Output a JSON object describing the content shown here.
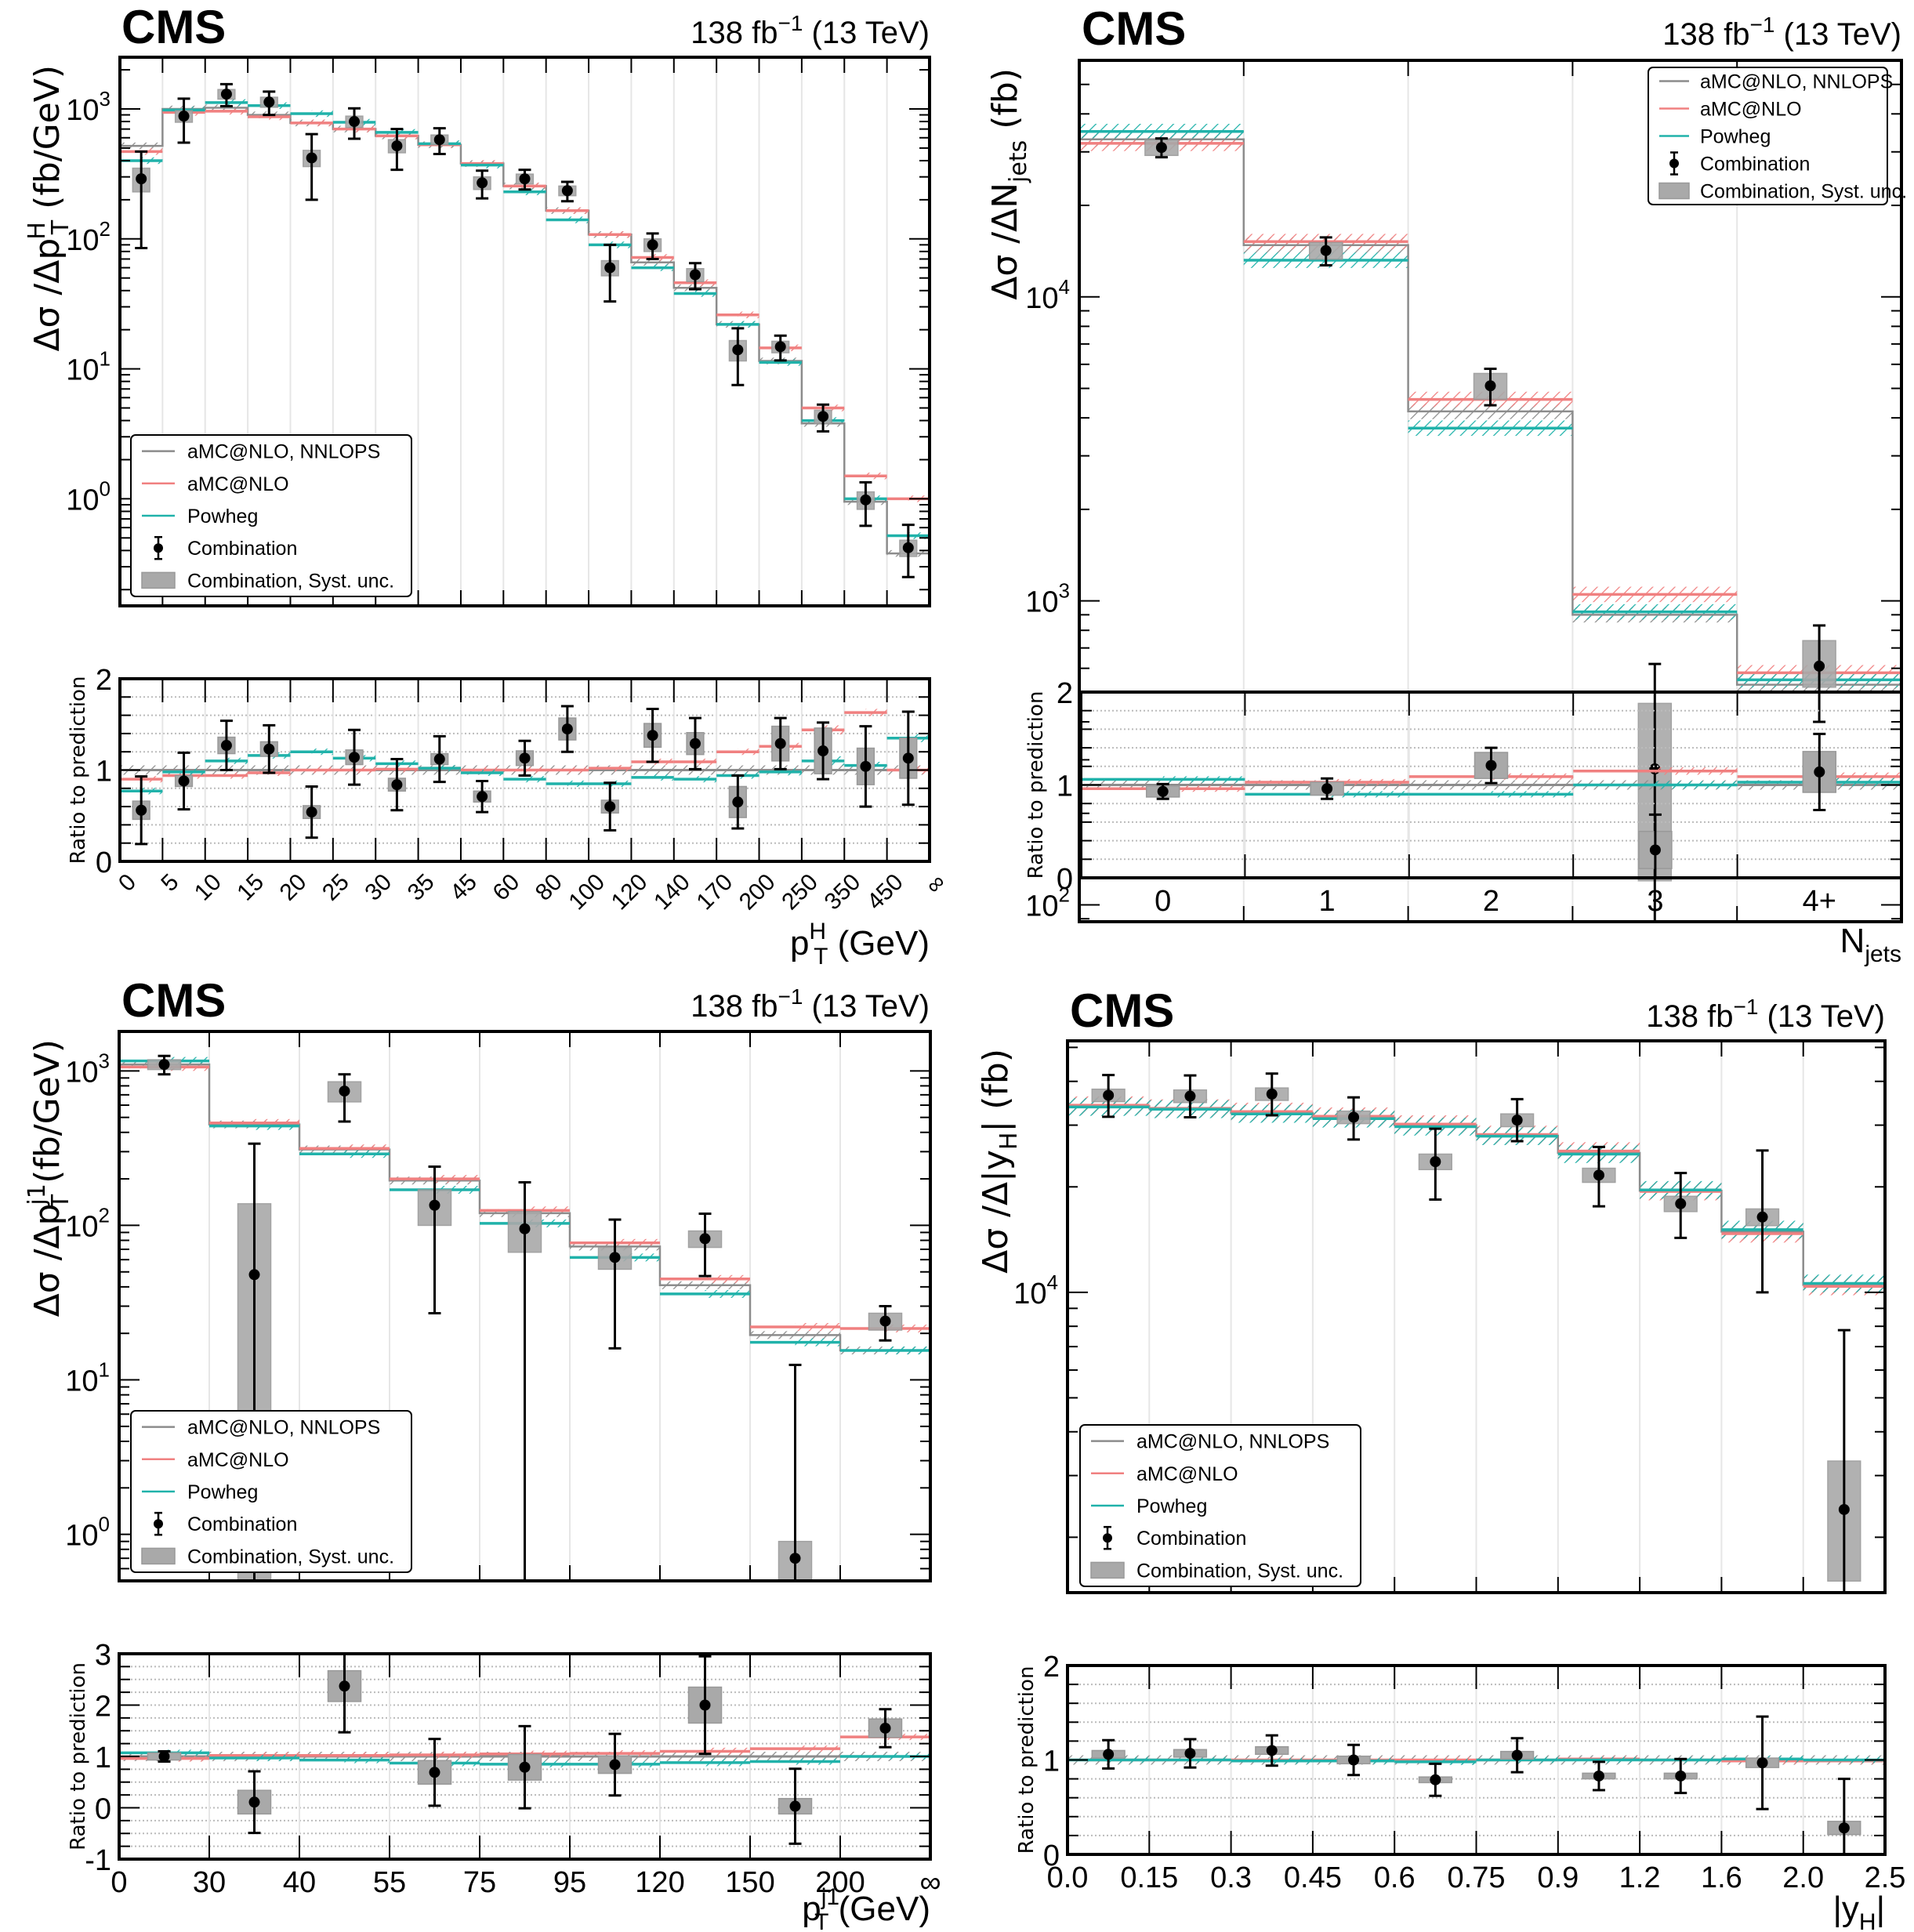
{
  "header": {
    "experiment": "CMS",
    "lumi_label": "138 fb",
    "lumi_sup": "−1",
    "energy_label": "(13 TeV)"
  },
  "legend": {
    "items": [
      {
        "key": "nnlops",
        "label": "aMC@NLO, NNLOPS"
      },
      {
        "key": "amcnlo",
        "label": "aMC@NLO"
      },
      {
        "key": "powheg",
        "label": "Powheg"
      },
      {
        "key": "comb",
        "label": "Combination"
      },
      {
        "key": "syst",
        "label": "Combination, Syst. unc."
      }
    ]
  },
  "colors": {
    "nnlops": "#8c8c8c",
    "amcnlo": "#f08080",
    "powheg": "#20b2aa",
    "data": "#000000",
    "syst": "#a9a9a9",
    "grid": "#e6e6e6"
  },
  "chart_data": [
    {
      "id": "pth",
      "type": "line",
      "title": "",
      "ylabel": "Δσ /Δp_T^H (fb/GeV)",
      "ylabel_parts": {
        "main": "Δσ /Δp",
        "sub": "T",
        "sup": "H",
        "unit": " (fb/GeV)"
      },
      "xlabel_parts": {
        "main": "p",
        "sub": "T",
        "sup": "H",
        "unit": " (GeV)"
      },
      "ratio_ylabel": "Ratio to prediction",
      "yscale": "log",
      "ylim": [
        0.15,
        2500
      ],
      "ytick_labels": [
        {
          "v": 1000,
          "b": "10",
          "e": "3"
        },
        {
          "v": 100,
          "b": "10",
          "e": "2"
        },
        {
          "v": 10,
          "b": "10",
          "e": "1"
        },
        {
          "v": 1,
          "b": "10",
          "e": "0"
        }
      ],
      "ratio_ylim": [
        0,
        2
      ],
      "ratio_yticks": [
        0,
        1,
        2
      ],
      "categories": [
        "0",
        "5",
        "10",
        "15",
        "20",
        "25",
        "30",
        "35",
        "45",
        "60",
        "80",
        "100",
        "120",
        "140",
        "170",
        "200",
        "250",
        "350",
        "450",
        "∞"
      ],
      "x_rotated": true,
      "legend_position": "bottom-left",
      "series": [
        {
          "name": "aMC@NLO, NNLOPS",
          "values": [
            520,
            1000,
            1020,
            900,
            780,
            700,
            620,
            530,
            380,
            255,
            165,
            108,
            66,
            42,
            22,
            11.5,
            3.8,
            0.95,
            0.38
          ]
        },
        {
          "name": "aMC@NLO",
          "values": [
            470,
            940,
            960,
            870,
            780,
            700,
            620,
            530,
            380,
            255,
            165,
            108,
            72,
            46,
            26,
            14.5,
            5.0,
            1.5,
            1.0
          ]
        },
        {
          "name": "Powheg",
          "values": [
            400,
            980,
            1120,
            1060,
            920,
            790,
            660,
            540,
            370,
            230,
            140,
            90,
            60,
            38,
            22,
            11.2,
            4.0,
            1.0,
            0.52
          ]
        }
      ],
      "combination": {
        "values": [
          290,
          880,
          1300,
          1130,
          420,
          800,
          520,
          580,
          270,
          290,
          235,
          60,
          90,
          53,
          14,
          14.8,
          4.3,
          0.98,
          0.42
        ],
        "err_low": [
          205,
          330,
          250,
          230,
          220,
          210,
          180,
          130,
          65,
          50,
          40,
          27,
          20,
          12,
          6.5,
          3.2,
          1.0,
          0.36,
          0.17
        ],
        "err_high": [
          180,
          320,
          250,
          230,
          220,
          210,
          180,
          130,
          65,
          50,
          40,
          30,
          20,
          12,
          6.5,
          3.2,
          1.0,
          0.36,
          0.21
        ],
        "syst_low": [
          60,
          90,
          110,
          100,
          60,
          80,
          60,
          50,
          30,
          25,
          20,
          8,
          10,
          6,
          2.5,
          1.5,
          0.5,
          0.15,
          0.06
        ],
        "syst_high": [
          60,
          90,
          110,
          100,
          60,
          80,
          60,
          50,
          30,
          25,
          20,
          8,
          10,
          6,
          2.5,
          1.5,
          0.5,
          0.15,
          0.06
        ]
      },
      "ratio": {
        "nnlops": [
          1,
          1,
          1,
          1,
          1,
          1,
          1,
          1,
          1,
          1,
          1,
          1,
          1,
          1,
          1,
          1,
          1,
          1,
          1
        ],
        "amcnlo": [
          0.9,
          0.94,
          0.94,
          0.97,
          1.0,
          1.0,
          1.01,
          1.02,
          1.0,
          1.0,
          1.0,
          1.02,
          1.09,
          1.09,
          1.2,
          1.26,
          1.44,
          1.63,
          1.0
        ],
        "powheg": [
          0.77,
          0.98,
          1.1,
          1.16,
          1.2,
          1.13,
          1.07,
          1.02,
          0.97,
          0.9,
          0.85,
          0.85,
          0.92,
          0.9,
          0.94,
          0.98,
          1.1,
          1.05,
          1.35
        ],
        "data": [
          0.56,
          0.88,
          1.27,
          1.23,
          0.54,
          1.14,
          0.84,
          1.12,
          0.71,
          1.13,
          1.45,
          0.6,
          1.38,
          1.29,
          0.65,
          1.29,
          1.21,
          1.04,
          1.13
        ],
        "err": [
          0.37,
          0.31,
          0.27,
          0.26,
          0.28,
          0.3,
          0.28,
          0.25,
          0.17,
          0.19,
          0.25,
          0.26,
          0.29,
          0.28,
          0.29,
          0.28,
          0.31,
          0.44,
          0.51
        ],
        "syst": [
          0.1,
          0.06,
          0.09,
          0.08,
          0.07,
          0.08,
          0.07,
          0.06,
          0.06,
          0.08,
          0.12,
          0.07,
          0.13,
          0.12,
          0.17,
          0.19,
          0.25,
          0.2,
          0.22
        ]
      }
    },
    {
      "id": "njets",
      "type": "line",
      "ylabel": "Δσ /ΔN_jets (fb)",
      "ylabel_parts": {
        "main": "Δσ /ΔN",
        "sub": "jets",
        "sup": "",
        "unit": " (fb)"
      },
      "xlabel_parts": {
        "main": "N",
        "sub": "jets",
        "sup": "",
        "unit": ""
      },
      "ratio_ylabel": "Ratio to prediction",
      "yscale": "log",
      "ylim": [
        88,
        60000
      ],
      "ytick_labels": [
        {
          "v": 10000,
          "b": "10",
          "e": "4"
        },
        {
          "v": 1000,
          "b": "10",
          "e": "3"
        },
        {
          "v": 100,
          "b": "10",
          "e": "2"
        }
      ],
      "ratio_ylim": [
        0,
        2
      ],
      "ratio_yticks": [
        0,
        1,
        2
      ],
      "categories": [
        "0",
        "1",
        "2",
        "3",
        "4+"
      ],
      "x_centered": true,
      "legend_position": "top-right",
      "series": [
        {
          "name": "aMC@NLO, NNLOPS",
          "values": [
            33000,
            14800,
            4200,
            900,
            530
          ]
        },
        {
          "name": "aMC@NLO",
          "values": [
            32000,
            15200,
            4600,
            1050,
            580
          ]
        },
        {
          "name": "Powheg",
          "values": [
            35000,
            13200,
            3700,
            920,
            550
          ]
        }
      ],
      "combination": {
        "values": [
          31000,
          14200,
          5100,
          280,
          610
        ],
        "err_low": [
          2200,
          1500,
          700,
          280,
          210
        ],
        "err_high": [
          2200,
          1500,
          700,
          340,
          220
        ],
        "syst_low": [
          1800,
          900,
          500,
          160,
          90
        ],
        "syst_high": [
          1800,
          900,
          500,
          180,
          130
        ]
      },
      "ratio": {
        "nnlops": [
          1,
          1,
          1,
          1,
          1
        ],
        "amcnlo": [
          0.96,
          1.03,
          1.09,
          1.15,
          1.09
        ],
        "powheg": [
          1.06,
          0.9,
          0.9,
          1.0,
          1.03
        ],
        "data": [
          0.93,
          0.96,
          1.21,
          0.3,
          1.14
        ],
        "err": [
          0.08,
          0.11,
          0.19,
          0.38,
          0.41
        ],
        "syst": [
          0.06,
          0.07,
          0.14,
          0.2,
          0.22
        ]
      }
    },
    {
      "id": "ptj1",
      "type": "line",
      "ylabel": "Δσ /Δp_T^j1 (fb/GeV)",
      "ylabel_parts": {
        "main": "Δσ /Δp",
        "sub": "T",
        "sup": "j1",
        "unit": " (fb/GeV)"
      },
      "xlabel_parts": {
        "main": "p",
        "sub": "T",
        "sup": "j1",
        "unit": " (GeV)"
      },
      "ratio_ylabel": "Ratio to prediction",
      "yscale": "log",
      "ylim": [
        0.5,
        1800
      ],
      "ytick_labels": [
        {
          "v": 1000,
          "b": "10",
          "e": "3"
        },
        {
          "v": 100,
          "b": "10",
          "e": "2"
        },
        {
          "v": 10,
          "b": "10",
          "e": "1"
        },
        {
          "v": 1,
          "b": "10",
          "e": "0"
        }
      ],
      "ratio_ylim": [
        -1,
        3
      ],
      "ratio_yticks": [
        -1,
        0,
        1,
        2,
        3
      ],
      "categories": [
        "0",
        "30",
        "40",
        "55",
        "75",
        "95",
        "120",
        "150",
        "200",
        "∞"
      ],
      "legend_position": "bottom-left",
      "series": [
        {
          "name": "aMC@NLO, NNLOPS",
          "values": [
            1100,
            450,
            310,
            195,
            120,
            73,
            41,
            19.5,
            15.5
          ]
        },
        {
          "name": "aMC@NLO",
          "values": [
            1060,
            460,
            315,
            200,
            125,
            77,
            45,
            22,
            21.5
          ]
        },
        {
          "name": "Powheg",
          "values": [
            1160,
            440,
            290,
            170,
            103,
            62,
            36,
            17.5,
            15.5
          ]
        }
      ],
      "combination": {
        "values": [
          1100,
          48,
          740,
          135,
          95,
          62,
          82,
          0.7,
          24
        ],
        "err_low": [
          150,
          47.5,
          270,
          108,
          94.5,
          46,
          35,
          0.69,
          6
        ],
        "err_high": [
          150,
          290,
          210,
          105,
          95,
          47,
          37,
          11.8,
          6
        ],
        "syst_low": [
          80,
          47.5,
          110,
          35,
          28,
          10,
          10,
          0.2,
          3
        ],
        "syst_high": [
          80,
          90,
          110,
          35,
          28,
          10,
          10,
          0.2,
          3
        ]
      },
      "ratio": {
        "nnlops": [
          1,
          1,
          1,
          1,
          1,
          1,
          1,
          1,
          1
        ],
        "amcnlo": [
          0.96,
          1.02,
          1.02,
          1.03,
          1.05,
          1.06,
          1.1,
          1.15,
          1.38
        ],
        "powheg": [
          1.07,
          0.97,
          0.93,
          0.87,
          0.85,
          0.85,
          0.88,
          0.9,
          1.0
        ],
        "data": [
          1.0,
          0.11,
          2.37,
          0.69,
          0.79,
          0.84,
          2.0,
          0.03,
          1.55
        ],
        "err": [
          0.1,
          0.6,
          0.9,
          0.65,
          0.8,
          0.6,
          0.95,
          0.73,
          0.37
        ],
        "syst": [
          0.07,
          0.23,
          0.3,
          0.23,
          0.25,
          0.17,
          0.35,
          0.15,
          0.18
        ]
      }
    },
    {
      "id": "yh",
      "type": "line",
      "ylabel": "Δσ /Δ|y_H| (fb)",
      "ylabel_parts": {
        "main": "Δσ /Δ|y",
        "sub": "H",
        "sup": "",
        "unit": "| (fb)"
      },
      "xlabel_parts": {
        "main": "|y",
        "sub": "H",
        "sup": "",
        "unit": "|"
      },
      "ratio_ylabel": "Ratio to prediction",
      "yscale": "log",
      "ylim": [
        1390,
        52200
      ],
      "ytick_labels": [
        {
          "v": 10000,
          "b": "10",
          "e": "4"
        }
      ],
      "ratio_ylim": [
        0,
        2
      ],
      "ratio_yticks": [
        0,
        1,
        2
      ],
      "categories": [
        "0.0",
        "0.15",
        "0.3",
        "0.45",
        "0.6",
        "0.75",
        "0.9",
        "1.2",
        "1.6",
        "2.0",
        "2.5"
      ],
      "legend_position": "bottom-left",
      "series": [
        {
          "name": "aMC@NLO, NNLOPS",
          "values": [
            34000,
            33500,
            32500,
            31500,
            30000,
            28000,
            25000,
            19500,
            14900,
            10500
          ]
        },
        {
          "name": "aMC@NLO",
          "values": [
            34200,
            33500,
            32800,
            31800,
            30200,
            28200,
            25300,
            19400,
            14700,
            10400
          ]
        },
        {
          "name": "Powheg",
          "values": [
            33800,
            33300,
            32300,
            31300,
            29700,
            27900,
            24800,
            19600,
            15100,
            10600
          ]
        }
      ],
      "combination": {
        "values": [
          36500,
          36300,
          36800,
          31600,
          23600,
          31000,
          21600,
          17900,
          16400,
          2400
        ],
        "err_low": [
          4800,
          4700,
          4800,
          4300,
          5200,
          4000,
          4000,
          3600,
          6400,
          2390
        ],
        "err_high": [
          5200,
          5300,
          5300,
          4400,
          5700,
          4600,
          4400,
          4000,
          9000,
          5400
        ],
        "syst_low": [
          1500,
          1500,
          1500,
          1300,
          1200,
          1300,
          1000,
          900,
          900,
          900
        ],
        "syst_high": [
          1500,
          1500,
          1500,
          1300,
          1200,
          1300,
          1000,
          900,
          900,
          900
        ]
      },
      "ratio": {
        "nnlops": [
          1,
          1,
          1,
          1,
          1,
          1,
          1,
          1,
          1,
          1
        ],
        "amcnlo": [
          1.0,
          1.0,
          1.0,
          1.0,
          1.0,
          1.0,
          1.01,
          1.0,
          0.99,
          0.99
        ],
        "powheg": [
          1.0,
          1.0,
          0.99,
          0.99,
          0.98,
          1.0,
          1.0,
          1.0,
          1.01,
          1.0
        ],
        "data": [
          1.06,
          1.07,
          1.1,
          1.0,
          0.79,
          1.05,
          0.83,
          0.83,
          0.97,
          0.28
        ],
        "err": [
          0.15,
          0.15,
          0.16,
          0.16,
          0.17,
          0.18,
          0.15,
          0.18,
          0.49,
          0.52
        ],
        "syst": [
          0.04,
          0.04,
          0.04,
          0.04,
          0.03,
          0.04,
          0.03,
          0.03,
          0.05,
          0.07
        ]
      }
    }
  ]
}
